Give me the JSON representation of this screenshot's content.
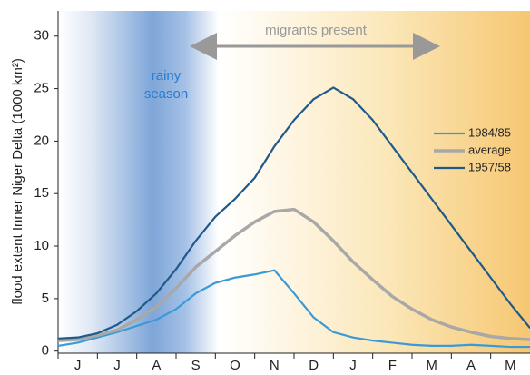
{
  "chart_data": {
    "type": "line",
    "y_label": "flood extent Inner Niger Delta (1000 km²)",
    "categories": [
      "J",
      "J",
      "A",
      "S",
      "O",
      "N",
      "D",
      "J",
      "F",
      "M",
      "A",
      "M"
    ],
    "x": [
      0,
      0.5,
      1,
      1.5,
      2,
      2.5,
      3,
      3.5,
      4,
      4.5,
      5,
      5.5,
      6,
      6.5,
      7,
      7.5,
      8,
      8.5,
      9,
      9.5,
      10,
      10.5,
      11,
      11.5,
      12
    ],
    "xlim": [
      0,
      12
    ],
    "ylim": [
      -0.2,
      32.4
    ],
    "yticks": [
      0,
      5,
      10,
      15,
      20,
      25,
      30
    ],
    "annotations": {
      "rainy_season": [
        "rainy",
        "season"
      ],
      "migrants": "migrants present"
    },
    "legend": "right",
    "series": [
      {
        "name": "1984/85",
        "color": "#3a9ad6",
        "values": [
          0.5,
          0.8,
          1.3,
          1.8,
          2.4,
          3.0,
          4.0,
          5.5,
          6.5,
          7.0,
          7.3,
          7.7,
          5.5,
          3.2,
          1.8,
          1.3,
          1.0,
          0.8,
          0.6,
          0.5,
          0.5,
          0.6,
          0.5,
          0.4,
          0.4
        ]
      },
      {
        "name": "average",
        "color": "#a8a8a8",
        "values": [
          1.0,
          1.1,
          1.5,
          2.0,
          3.0,
          4.2,
          6.0,
          8.0,
          9.5,
          11.0,
          12.3,
          13.3,
          13.5,
          12.3,
          10.5,
          8.5,
          6.8,
          5.2,
          4.0,
          3.0,
          2.3,
          1.8,
          1.4,
          1.2,
          1.1
        ]
      },
      {
        "name": "1957/58",
        "color": "#1f5a8a",
        "values": [
          1.2,
          1.3,
          1.7,
          2.5,
          3.8,
          5.5,
          7.8,
          10.5,
          12.8,
          14.5,
          16.5,
          19.5,
          22.0,
          24.0,
          25.1,
          24.0,
          22.0,
          19.5,
          17.0,
          14.5,
          12.0,
          9.5,
          7.0,
          4.5,
          2.2
        ]
      }
    ]
  }
}
